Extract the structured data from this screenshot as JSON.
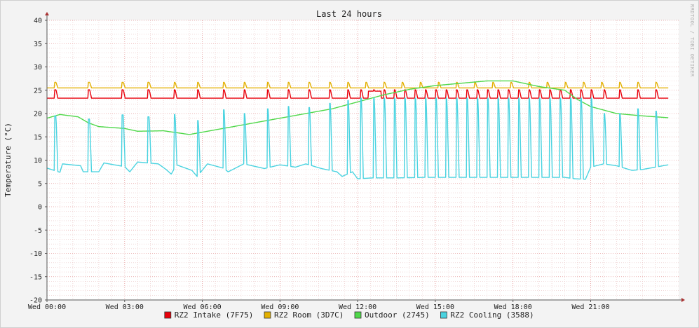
{
  "chart_data": {
    "type": "line",
    "title": "Last 24 hours",
    "ylabel": "Temperature (°C)",
    "watermark": "RRDTOOL / TOBI OETIKER",
    "ylim": [
      -20,
      40
    ],
    "yticks": [
      40,
      35,
      30,
      25,
      20,
      15,
      10,
      5,
      0,
      -5,
      -10,
      -15,
      -20
    ],
    "xlim_hours": [
      0,
      24.4
    ],
    "xticks": [
      {
        "hour": 0,
        "label": "Wed 00:00"
      },
      {
        "hour": 3,
        "label": "Wed 03:00"
      },
      {
        "hour": 6,
        "label": "Wed 06:00"
      },
      {
        "hour": 9,
        "label": "Wed 09:00"
      },
      {
        "hour": 12,
        "label": "Wed 12:00"
      },
      {
        "hour": 15,
        "label": "Wed 15:00"
      },
      {
        "hour": 18,
        "label": "Wed 18:00"
      },
      {
        "hour": 21,
        "label": "Wed 21:00"
      }
    ],
    "grid": true,
    "legend_position": "bottom",
    "series": [
      {
        "name": "RZ2 Intake (7F75)",
        "color": "#e8000b",
        "baseline": [
          [
            0,
            23.3
          ],
          [
            24,
            23.3
          ]
        ],
        "spike_height": 1.8,
        "spike_hours": [
          0.3,
          1.6,
          2.9,
          3.9,
          4.9,
          5.8,
          6.8,
          7.6,
          8.5,
          9.3,
          10.1,
          10.9,
          11.6,
          12.1,
          12.6,
          13.0,
          13.4,
          13.8,
          14.2,
          14.6,
          15.0,
          15.4,
          15.8,
          16.2,
          16.6,
          17.0,
          17.4,
          17.8,
          18.2,
          18.6,
          19.0,
          19.4,
          19.8,
          20.2,
          20.6,
          21.0,
          21.5,
          22.1,
          22.8,
          23.5
        ],
        "sustained": [
          [
            12.4,
            12.9,
            24.8
          ]
        ]
      },
      {
        "name": "RZ2 Room (3D7C)",
        "color": "#e3b000",
        "baseline": [
          [
            0,
            25.5
          ],
          [
            24,
            25.5
          ]
        ],
        "spike_height": 1.2,
        "spike_hours": [
          0.3,
          1.6,
          2.9,
          3.9,
          4.9,
          5.8,
          6.8,
          7.6,
          8.5,
          9.3,
          10.1,
          10.9,
          11.6,
          12.3,
          13.0,
          13.7,
          14.4,
          15.1,
          15.8,
          16.5,
          17.2,
          17.9,
          18.6,
          19.3,
          20.0,
          20.7,
          21.4,
          22.1,
          22.8,
          23.5
        ],
        "sustained": []
      },
      {
        "name": "Outdoor (2745)",
        "color": "#4fd84a",
        "baseline": [
          [
            0,
            19.0
          ],
          [
            0.5,
            19.8
          ],
          [
            1.2,
            19.3
          ],
          [
            1.6,
            18.0
          ],
          [
            2.0,
            17.2
          ],
          [
            3.0,
            16.8
          ],
          [
            3.5,
            16.2
          ],
          [
            4.5,
            16.3
          ],
          [
            5.5,
            15.5
          ],
          [
            6.0,
            16.0
          ],
          [
            7.0,
            17.0
          ],
          [
            8.0,
            18.0
          ],
          [
            9.0,
            19.0
          ],
          [
            10.0,
            20.0
          ],
          [
            11.0,
            21.0
          ],
          [
            12.0,
            22.5
          ],
          [
            13.0,
            24.0
          ],
          [
            14.0,
            25.2
          ],
          [
            15.0,
            26.0
          ],
          [
            16.0,
            26.5
          ],
          [
            17.0,
            27.0
          ],
          [
            17.5,
            27.0
          ],
          [
            18.0,
            27.0
          ],
          [
            19.0,
            25.8
          ],
          [
            20.0,
            25.0
          ],
          [
            20.5,
            23.0
          ],
          [
            21.0,
            21.5
          ],
          [
            22.0,
            20.0
          ],
          [
            23.0,
            19.5
          ],
          [
            24.0,
            19.1
          ]
        ],
        "spike_height": 0,
        "spike_hours": [],
        "sustained": []
      },
      {
        "name": "RZ2 Cooling (3588)",
        "color": "#4ad3e0",
        "baseline": [
          [
            0,
            8.3
          ],
          [
            0.5,
            7.4
          ],
          [
            0.6,
            9.2
          ],
          [
            1.3,
            8.8
          ],
          [
            1.4,
            7.5
          ],
          [
            2.0,
            7.5
          ],
          [
            2.2,
            9.4
          ],
          [
            3.0,
            8.6
          ],
          [
            3.2,
            7.5
          ],
          [
            3.5,
            9.6
          ],
          [
            4.3,
            9.2
          ],
          [
            4.6,
            8.0
          ],
          [
            4.8,
            7.0
          ],
          [
            5.0,
            9.0
          ],
          [
            5.6,
            7.8
          ],
          [
            5.8,
            6.5
          ],
          [
            6.2,
            9.2
          ],
          [
            6.8,
            8.3
          ],
          [
            7.0,
            7.5
          ],
          [
            7.6,
            9.2
          ],
          [
            8.4,
            8.2
          ],
          [
            9.0,
            9.0
          ],
          [
            9.6,
            8.5
          ],
          [
            10.0,
            9.2
          ],
          [
            10.6,
            8.2
          ],
          [
            11.2,
            7.5
          ],
          [
            11.4,
            6.5
          ],
          [
            11.8,
            7.5
          ],
          [
            12.0,
            6.0
          ],
          [
            12.6,
            6.2
          ],
          [
            13.6,
            6.2
          ],
          [
            14.6,
            6.3
          ],
          [
            16.0,
            6.3
          ],
          [
            17.0,
            6.3
          ],
          [
            18.0,
            6.3
          ],
          [
            19.0,
            6.3
          ],
          [
            20.0,
            6.3
          ],
          [
            20.4,
            6.0
          ],
          [
            20.8,
            5.9
          ],
          [
            21.0,
            8.5
          ],
          [
            21.5,
            9.2
          ],
          [
            22.0,
            8.8
          ],
          [
            22.6,
            7.8
          ],
          [
            23.0,
            8.0
          ],
          [
            23.5,
            8.5
          ],
          [
            24.0,
            9.0
          ]
        ],
        "spike_height": 8,
        "spike_hours": [
          0.3,
          1.6,
          2.9,
          3.9,
          4.9,
          5.8,
          6.8,
          7.6,
          8.5,
          9.3,
          10.1,
          10.9,
          11.6,
          12.1,
          12.6,
          13.0,
          13.4,
          13.8,
          14.2,
          14.6,
          15.0,
          15.4,
          15.8,
          16.2,
          16.6,
          17.0,
          17.4,
          17.8,
          18.2,
          18.6,
          19.0,
          19.4,
          19.8,
          20.2,
          20.6,
          21.0,
          21.5,
          22.1,
          22.8,
          23.5
        ],
        "spike_peaks": [
          19.5,
          18.8,
          19.7,
          19.3,
          19.8,
          18.5,
          20.8,
          20.0,
          21.0,
          21.5,
          21.3,
          22.2,
          22.8,
          23.3,
          23.3,
          23.3,
          23.3,
          23.3,
          23.3,
          23.3,
          23.3,
          23.3,
          23.3,
          23.3,
          23.3,
          23.3,
          23.3,
          23.3,
          23.3,
          23.3,
          23.3,
          23.3,
          23.3,
          23.3,
          23.3,
          23.3,
          20.0,
          20.0,
          21.0,
          20.5
        ],
        "sustained": []
      }
    ]
  }
}
